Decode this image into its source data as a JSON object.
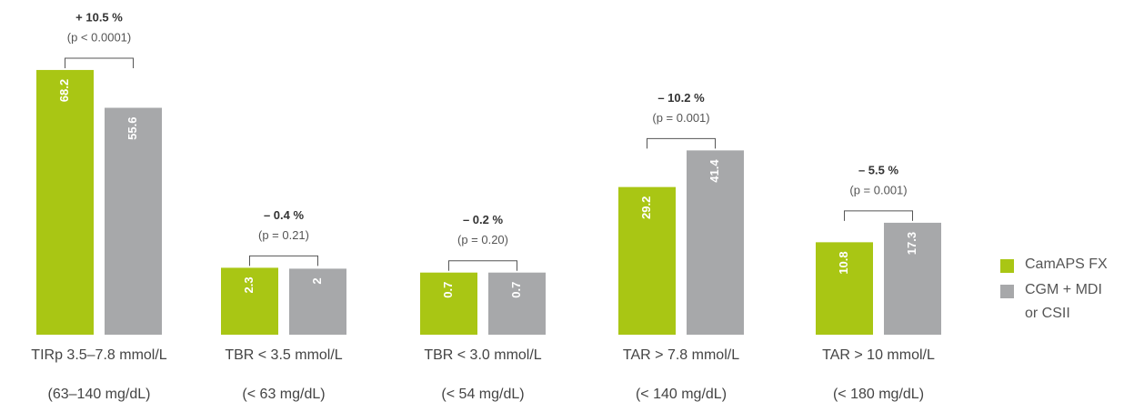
{
  "chart_data": {
    "type": "bar",
    "categories": [
      "TIRp 3.5–7.8 mmol/L",
      "TBR < 3.5 mmol/L",
      "TBR < 3.0 mmol/L",
      "TAR > 7.8 mmol/L",
      "TAR > 10 mmol/L"
    ],
    "category_notes": [
      "(63–140 mg/dL)",
      "(< 63 mg/dL)",
      "(< 54 mg/dL)",
      "(< 140 mg/dL)",
      "(< 180 mg/dL)"
    ],
    "series": [
      {
        "name": "CamAPS FX",
        "color": "#a9c614",
        "values": [
          68.2,
          2.3,
          0.7,
          29.2,
          10.8
        ]
      },
      {
        "name": "CGM + MDI or CSII",
        "color": "#a7a8aa",
        "values": [
          55.6,
          2.0,
          0.7,
          41.4,
          17.3
        ]
      }
    ],
    "annotations": [
      {
        "difference": "+ 10.5 %",
        "p": "(p < 0.0001)"
      },
      {
        "difference": "– 0.4 %",
        "p": "(p = 0.21)"
      },
      {
        "difference": "– 0.2 %",
        "p": "(p = 0.20)"
      },
      {
        "difference": "– 10.2 %",
        "p": "(p = 0.001)"
      },
      {
        "difference": "– 5.5 %",
        "p": "(p = 0.001)"
      }
    ],
    "ylim": [
      -20,
      70
    ]
  }
}
